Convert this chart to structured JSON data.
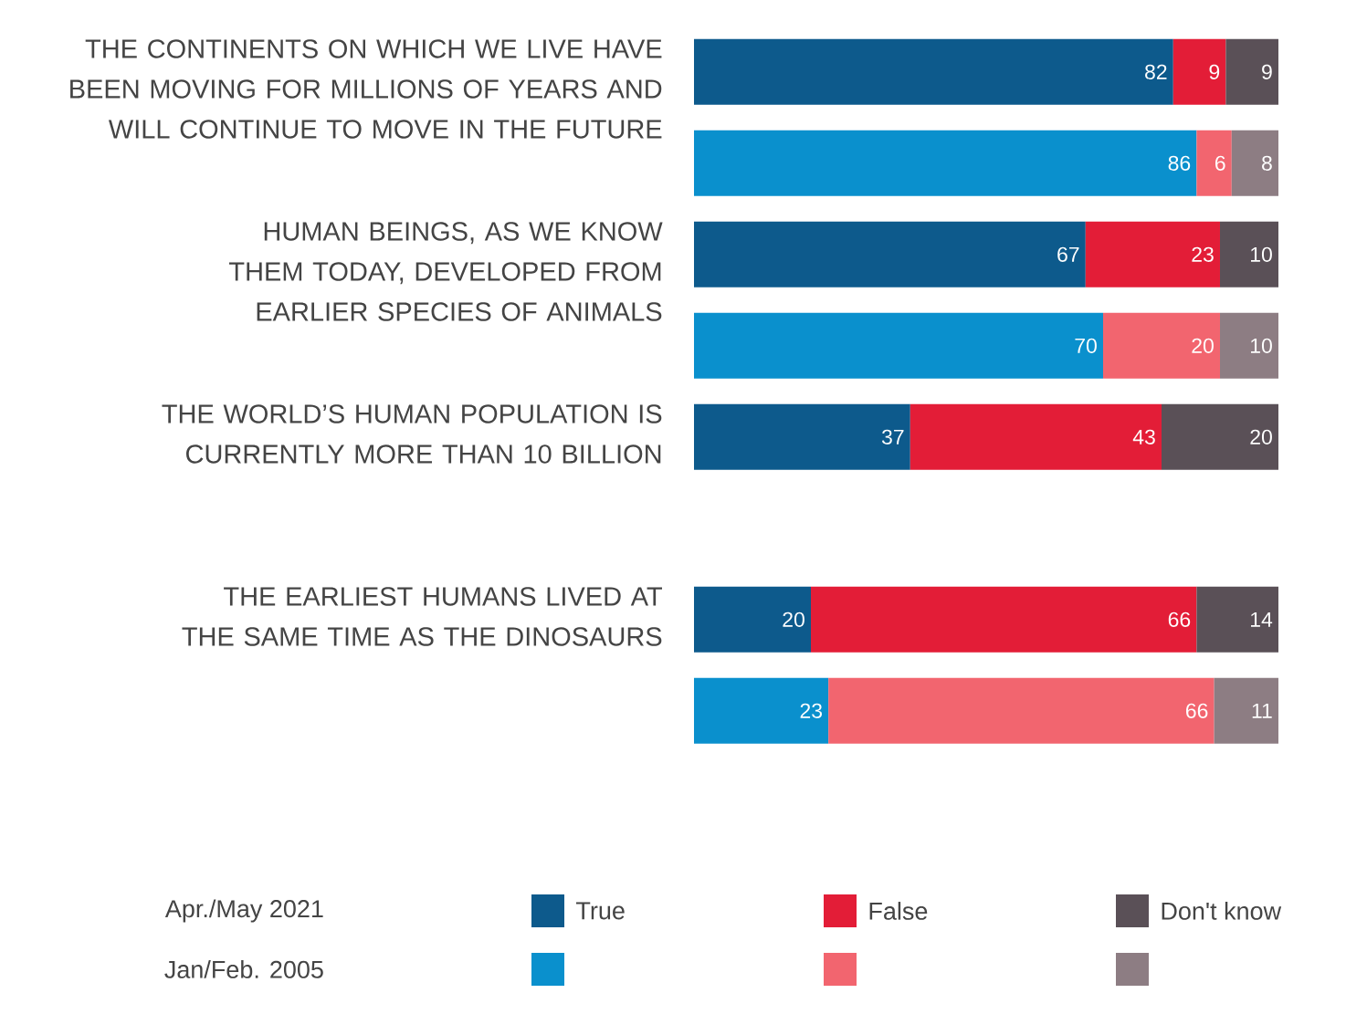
{
  "chart_data": {
    "type": "bar",
    "orientation": "horizontal",
    "stacked": true,
    "data_labels": true,
    "legend": "bottom",
    "categories": [
      "THE CONTINENTS ON WHICH WE LIVE HAVE BEEN MOVING FOR MILLIONS OF YEARS AND WILL CONTINUE TO MOVE IN THE FUTURE",
      null,
      "HUMAN BEINGS, AS WE KNOW THEM TODAY, DEVELOPED FROM EARLIER SPECIES OF ANIMALS",
      null,
      "THE WORLD’S HUMAN POPULATION IS CURRENTLY MORE THAN 10 BILLION",
      null,
      "THE EARLIEST HUMANS LIVED AT THE SAME TIME AS THE DINOSAURS",
      null
    ],
    "series": [
      {
        "name": "True",
        "color": "#0d5a8c",
        "values": [
          82,
          null,
          67,
          null,
          37,
          null,
          20,
          null
        ]
      },
      {
        "name": "False",
        "color": "#e31d37",
        "values": [
          9,
          null,
          23,
          null,
          43,
          null,
          66,
          null
        ]
      },
      {
        "name": "Don't know",
        "color": "#5a5057",
        "values": [
          9,
          null,
          10,
          null,
          20,
          null,
          14,
          null
        ]
      },
      {
        "color": "#0a90cd",
        "values": [
          null,
          86,
          null,
          70,
          null,
          null,
          null,
          23
        ]
      },
      {
        "color": "#f2656f",
        "values": [
          null,
          6,
          null,
          20,
          null,
          null,
          null,
          66
        ]
      },
      {
        "color": "#8d7d83",
        "values": [
          null,
          8,
          null,
          10,
          null,
          null,
          null,
          11
        ]
      }
    ],
    "annotations": [
      "Apr./May 2021",
      "Jan/Feb. 2005"
    ]
  }
}
